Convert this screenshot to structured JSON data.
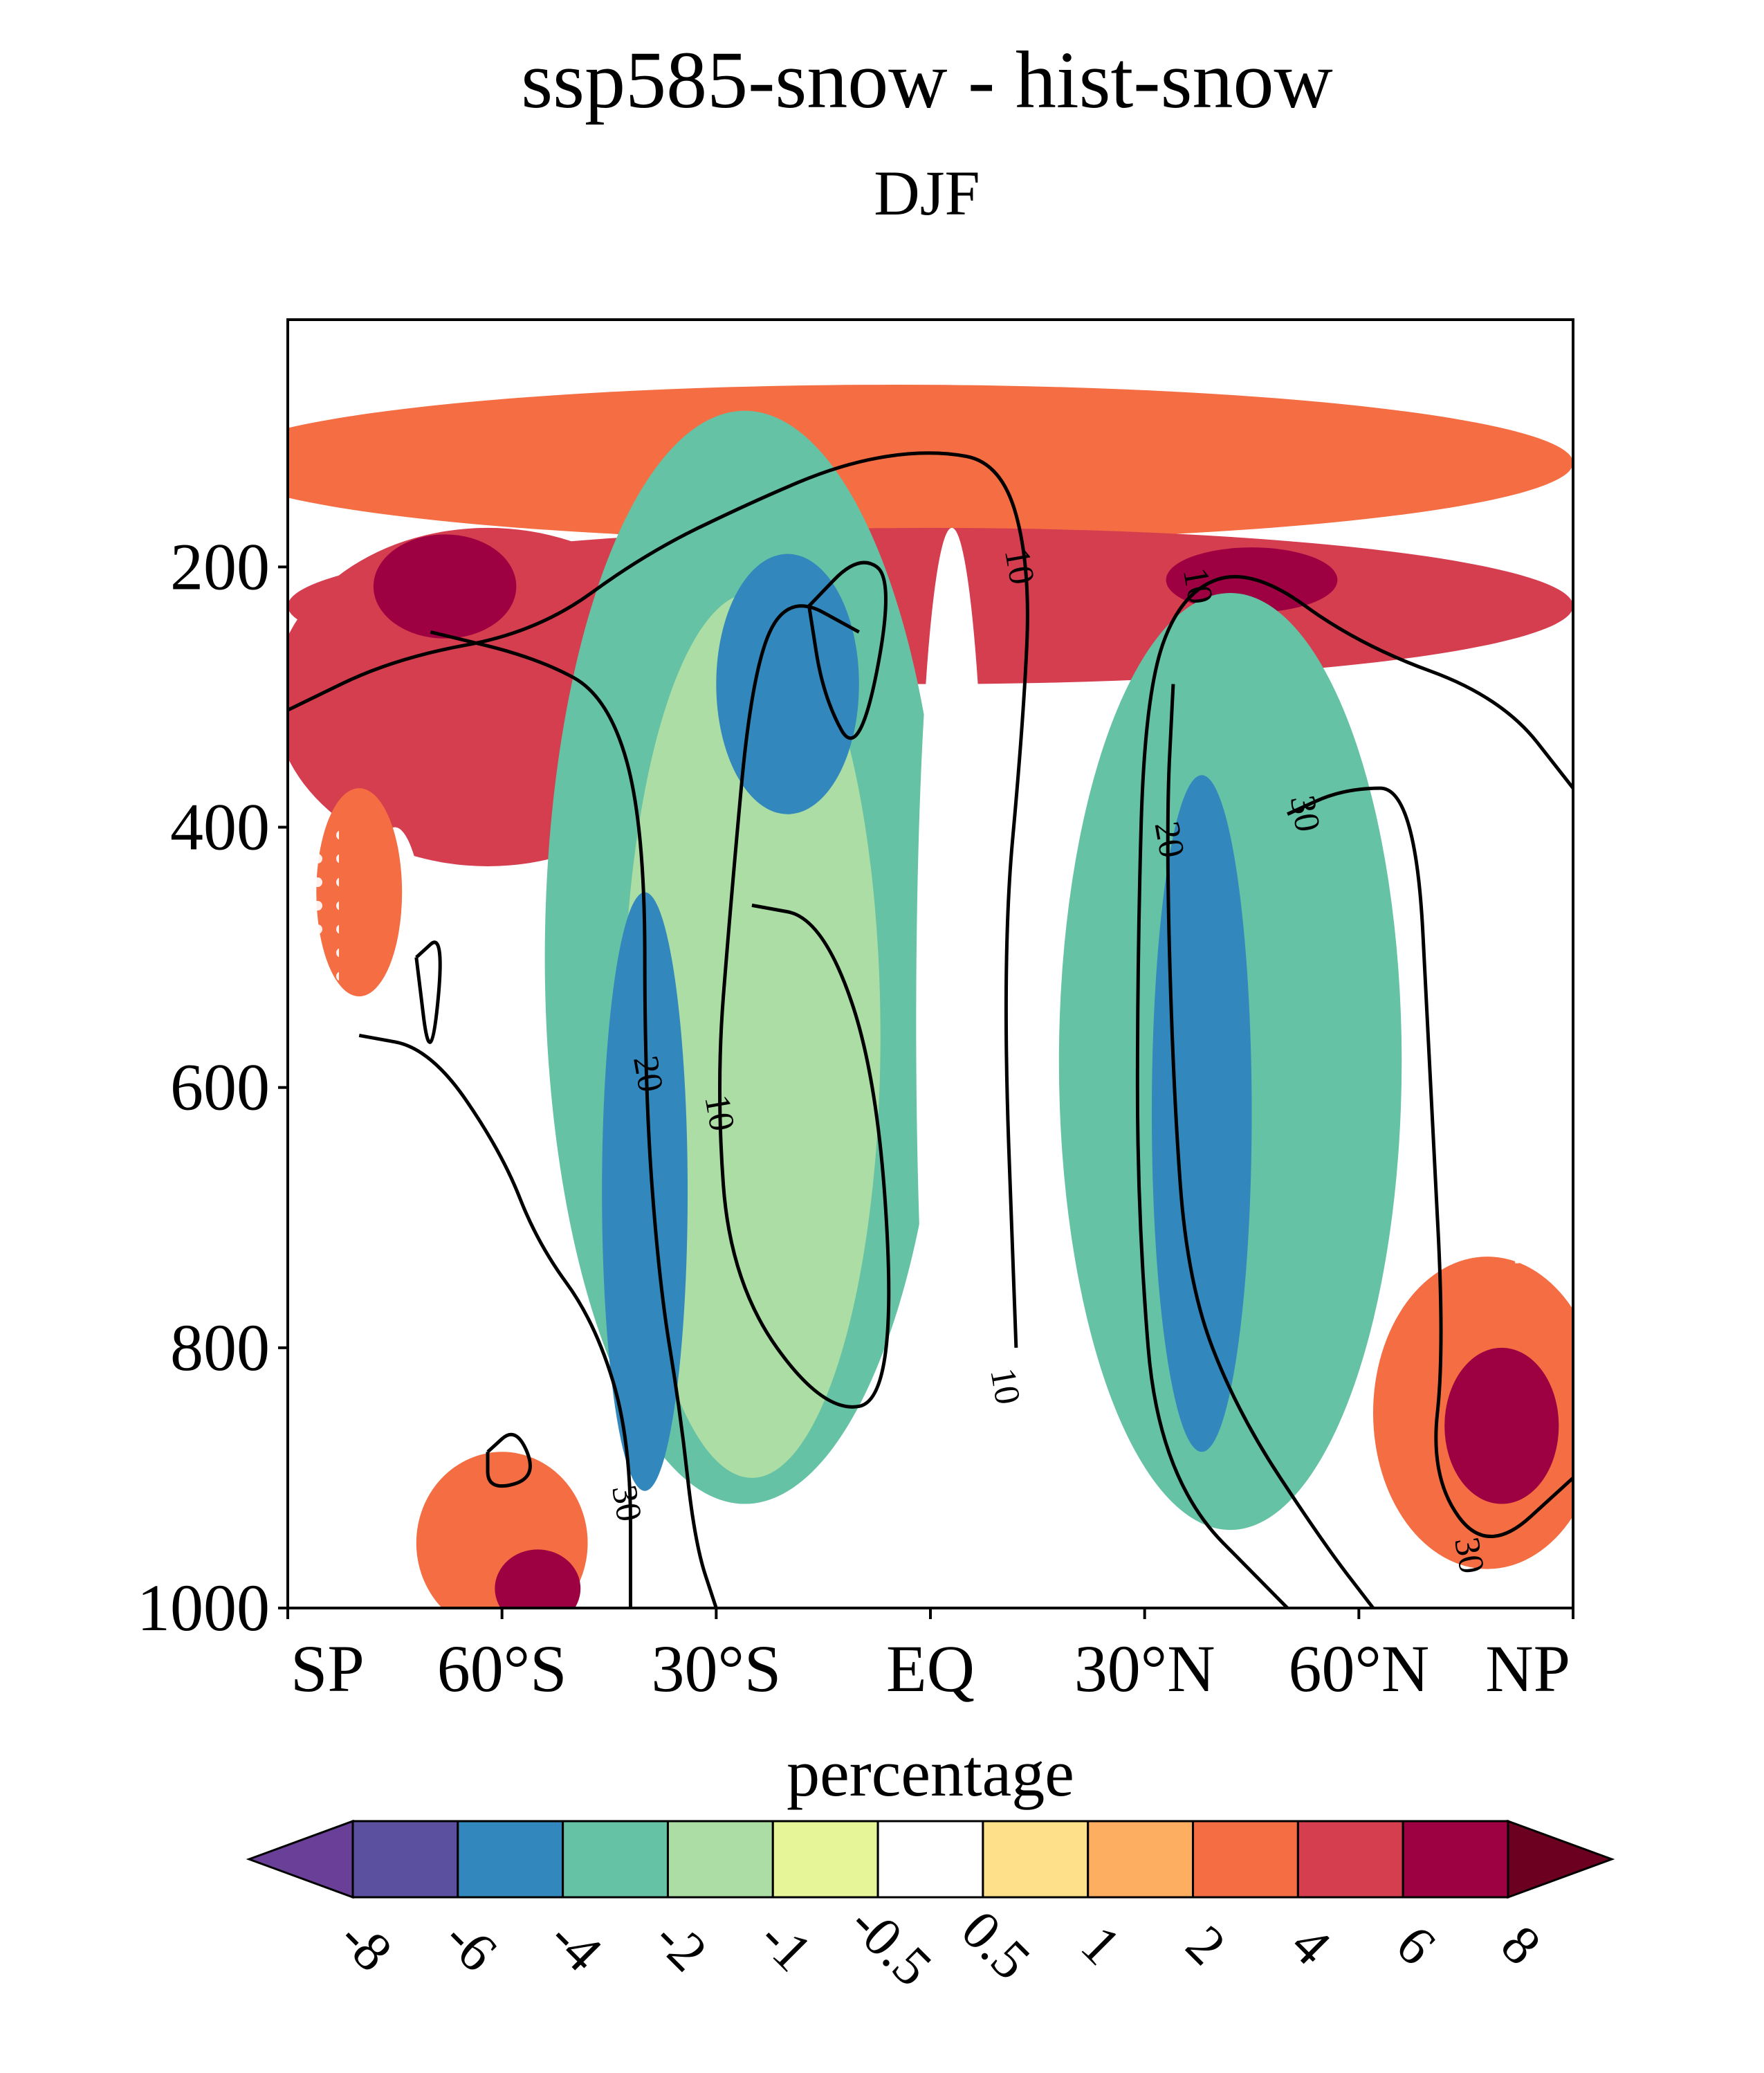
{
  "chart_data": {
    "type": "heatmap",
    "title": "ssp585-snow - hist-snow",
    "subtitle": "DJF",
    "xlabel": "",
    "ylabel": "",
    "x_ticks": [
      "SP",
      "60°S",
      "30°S",
      "EQ",
      "30°N",
      "60°N",
      "NP"
    ],
    "x_tick_values": [
      -90,
      -60,
      -30,
      0,
      30,
      60,
      90
    ],
    "y_ticks": [
      "200",
      "400",
      "600",
      "800",
      "1000"
    ],
    "y_tick_values": [
      200,
      400,
      600,
      800,
      1000
    ],
    "xlim": [
      -90,
      90
    ],
    "ylim": [
      1000,
      10
    ],
    "y_inverted": true,
    "colorbar": {
      "title": "percentage",
      "levels": [
        "-8",
        "-6",
        "-4",
        "-2",
        "-1",
        "-0.5",
        "0.5",
        "1",
        "2",
        "4",
        "6",
        "8"
      ],
      "colors": [
        "#6a3f98",
        "#5b4fa0",
        "#3288bd",
        "#66c2a5",
        "#abdda4",
        "#e6f598",
        "#ffffff",
        "#fee08b",
        "#fdae61",
        "#f46d43",
        "#d53e4f",
        "#9e0142",
        "#6b0020"
      ],
      "extend": "both"
    },
    "contour_labels": [
      {
        "text": "10",
        "lat": -30,
        "p": 620
      },
      {
        "text": "20",
        "lat": -40,
        "p": 590
      },
      {
        "text": "30",
        "lat": -43,
        "p": 920
      },
      {
        "text": "10",
        "lat": 12,
        "p": 200
      },
      {
        "text": "10",
        "lat": 37,
        "p": 215
      },
      {
        "text": "20",
        "lat": 33,
        "p": 410
      },
      {
        "text": "30",
        "lat": 52,
        "p": 390
      },
      {
        "text": "10",
        "lat": 10,
        "p": 830
      },
      {
        "text": "30",
        "lat": 75,
        "p": 960
      }
    ],
    "stippling": "white dots mark regions of significance",
    "blobs": [
      {
        "lat": -5,
        "p": 120,
        "rlat": 95,
        "rp": 60,
        "level": 9
      },
      {
        "lat": 0,
        "p": 230,
        "rlat": 90,
        "rp": 60,
        "level": 10
      },
      {
        "lat": -62,
        "p": 300,
        "rlat": 30,
        "rp": 130,
        "level": 10
      },
      {
        "lat": 45,
        "p": 210,
        "rlat": 12,
        "rp": 25,
        "level": 11
      },
      {
        "lat": -68,
        "p": 215,
        "rlat": 10,
        "rp": 40,
        "level": 11
      },
      {
        "lat": -26,
        "p": 500,
        "rlat": 28,
        "rp": 420,
        "level": 3
      },
      {
        "lat": -25,
        "p": 560,
        "rlat": 18,
        "rp": 340,
        "level": 4
      },
      {
        "lat": -40,
        "p": 680,
        "rlat": 6,
        "rp": 230,
        "level": 2
      },
      {
        "lat": -20,
        "p": 290,
        "rlat": 10,
        "rp": 100,
        "level": 2
      },
      {
        "lat": -75,
        "p": 540,
        "rlat": 5,
        "rp": 140,
        "level": 6
      },
      {
        "lat": 42,
        "p": 580,
        "rlat": 24,
        "rp": 360,
        "level": 3
      },
      {
        "lat": 38,
        "p": 620,
        "rlat": 7,
        "rp": 260,
        "level": 2
      },
      {
        "lat": 78,
        "p": 850,
        "rlat": 16,
        "rp": 120,
        "level": 9
      },
      {
        "lat": 80,
        "p": 860,
        "rlat": 8,
        "rp": 60,
        "level": 11
      },
      {
        "lat": -60,
        "p": 950,
        "rlat": 12,
        "rp": 70,
        "level": 9
      },
      {
        "lat": -55,
        "p": 985,
        "rlat": 6,
        "rp": 30,
        "level": 11
      },
      {
        "lat": 3,
        "p": 550,
        "rlat": 5,
        "rp": 380,
        "level": 6
      },
      {
        "lat": -80,
        "p": 450,
        "rlat": 6,
        "rp": 80,
        "level": 9
      }
    ],
    "contours": [
      {
        "value": "10",
        "points": [
          [
            -90,
            310
          ],
          [
            -75,
            270
          ],
          [
            -55,
            250
          ],
          [
            -40,
            190
          ],
          [
            -25,
            150
          ],
          [
            -12,
            120
          ],
          [
            0,
            110
          ],
          [
            10,
            120
          ],
          [
            14,
            200
          ],
          [
            13,
            320
          ],
          [
            10,
            500
          ],
          [
            12,
            800
          ]
        ]
      },
      {
        "value": "10",
        "points": [
          [
            -10,
            250
          ],
          [
            -20,
            220
          ],
          [
            -25,
            280
          ],
          [
            -28,
            460
          ],
          [
            -30,
            600
          ],
          [
            -28,
            750
          ],
          [
            -15,
            850
          ],
          [
            -5,
            840
          ],
          [
            -7,
            600
          ],
          [
            -15,
            470
          ],
          [
            -25,
            460
          ]
        ]
      },
      {
        "value": "10",
        "points": [
          [
            90,
            370
          ],
          [
            80,
            300
          ],
          [
            60,
            260
          ],
          [
            45,
            200
          ],
          [
            35,
            220
          ],
          [
            30,
            300
          ],
          [
            29,
            500
          ],
          [
            29,
            700
          ],
          [
            32,
            900
          ],
          [
            50,
            1000
          ]
        ]
      },
      {
        "value": "20",
        "points": [
          [
            -70,
            250
          ],
          [
            -55,
            270
          ],
          [
            -45,
            300
          ],
          [
            -40,
            400
          ],
          [
            -40,
            600
          ],
          [
            -38,
            750
          ],
          [
            -35,
            850
          ],
          [
            -33,
            950
          ],
          [
            -30,
            1000
          ]
        ]
      },
      {
        "value": "20",
        "points": [
          [
            -17,
            230
          ],
          [
            -15,
            300
          ],
          [
            -10,
            350
          ],
          [
            -5,
            210
          ],
          [
            -10,
            190
          ],
          [
            -17,
            230
          ]
        ]
      },
      {
        "value": "20",
        "points": [
          [
            34,
            290
          ],
          [
            33,
            400
          ],
          [
            34,
            600
          ],
          [
            36,
            750
          ],
          [
            43,
            850
          ],
          [
            55,
            950
          ],
          [
            62,
            1000
          ]
        ]
      },
      {
        "value": "30",
        "points": [
          [
            -80,
            560
          ],
          [
            -70,
            570
          ],
          [
            -60,
            650
          ],
          [
            -55,
            720
          ],
          [
            -47,
            780
          ],
          [
            -42,
            870
          ],
          [
            -42,
            1000
          ]
        ]
      },
      {
        "value": "30",
        "points": [
          [
            50,
            390
          ],
          [
            58,
            370
          ],
          [
            68,
            370
          ],
          [
            70,
            600
          ],
          [
            72,
            800
          ],
          [
            70,
            900
          ],
          [
            78,
            960
          ],
          [
            90,
            900
          ]
        ]
      },
      {
        "value": "30",
        "points": [
          [
            -72,
            500
          ],
          [
            -70,
            590
          ],
          [
            -68,
            480
          ],
          [
            -72,
            500
          ]
        ]
      },
      {
        "value": "30",
        "points": [
          [
            -62,
            880
          ],
          [
            -58,
            860
          ],
          [
            -55,
            900
          ],
          [
            -62,
            910
          ],
          [
            -62,
            880
          ]
        ]
      }
    ]
  }
}
